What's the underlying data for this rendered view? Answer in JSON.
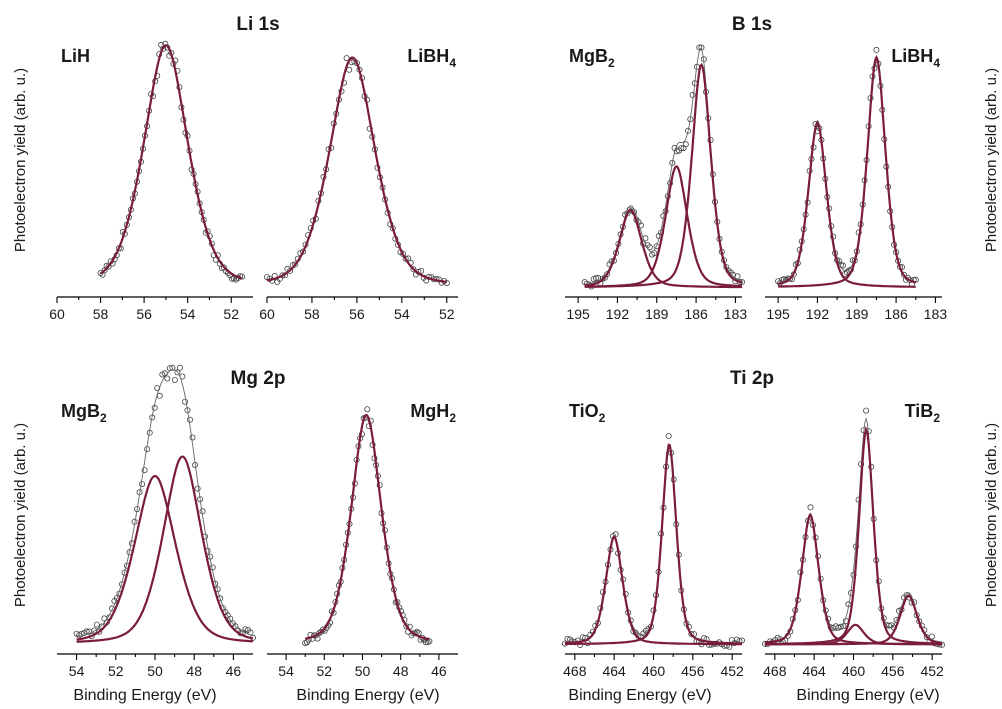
{
  "figure": {
    "ylabel": "Photoelectron yield",
    "ylabel_units": "(arb. u.)",
    "xlabel": "Binding Energy (eV)"
  },
  "groups": [
    {
      "title": "Li 1s"
    },
    {
      "title": "B 1s"
    },
    {
      "title": "Mg 2p"
    },
    {
      "title": "Ti 2p"
    }
  ],
  "colors": {
    "fit": "#7a1c3c",
    "data": "#444444",
    "envelope": "#666666"
  },
  "chart_data": [
    {
      "type": "line",
      "group": "Li 1s",
      "sample": "LiH",
      "sample_parts": [
        [
          "LiH",
          ""
        ]
      ],
      "x_range": [
        60,
        51
      ],
      "ticks": [
        60,
        58,
        56,
        54,
        52
      ],
      "data_extent": [
        58,
        51.5
      ],
      "peaks": [
        {
          "center": 55.0,
          "height": 1.0,
          "width": 1.55
        }
      ],
      "envelope": false
    },
    {
      "type": "line",
      "group": "Li 1s",
      "sample": "LiBH4",
      "sample_parts": [
        [
          "LiBH",
          "4"
        ]
      ],
      "x_range": [
        60,
        51.5
      ],
      "ticks": [
        60,
        58,
        56,
        54,
        52
      ],
      "data_extent": [
        60,
        52
      ],
      "peaks": [
        {
          "center": 56.2,
          "height": 0.95,
          "width": 1.55
        }
      ],
      "envelope": false
    },
    {
      "type": "line",
      "group": "B 1s",
      "sample": "MgB2",
      "sample_parts": [
        [
          "MgB",
          "2"
        ]
      ],
      "x_range": [
        196,
        182.5
      ],
      "ticks": [
        195,
        192,
        189,
        186,
        183
      ],
      "data_extent": [
        194.5,
        182.5
      ],
      "peaks": [
        {
          "center": 191.0,
          "height": 0.32,
          "width": 1.3
        },
        {
          "center": 187.5,
          "height": 0.5,
          "width": 1.25
        },
        {
          "center": 185.6,
          "height": 0.92,
          "width": 1.1
        }
      ],
      "envelope": true
    },
    {
      "type": "line",
      "group": "B 1s",
      "sample": "LiBH4",
      "sample_parts": [
        [
          "LiBH",
          "4"
        ]
      ],
      "x_range": [
        196,
        182.5
      ],
      "ticks": [
        195,
        192,
        189,
        186,
        183
      ],
      "data_extent": [
        195,
        184.5
      ],
      "peaks": [
        {
          "center": 192.0,
          "height": 0.68,
          "width": 1.05
        },
        {
          "center": 187.5,
          "height": 0.95,
          "width": 1.05
        }
      ],
      "envelope": true
    },
    {
      "type": "line",
      "group": "Mg 2p",
      "sample": "MgB2",
      "sample_parts": [
        [
          "MgB",
          "2"
        ]
      ],
      "x_range": [
        55,
        45
      ],
      "ticks": [
        54,
        52,
        50,
        48,
        46
      ],
      "data_extent": [
        54,
        45
      ],
      "peaks": [
        {
          "center": 50.0,
          "height": 0.69,
          "width": 1.6
        },
        {
          "center": 48.6,
          "height": 0.77,
          "width": 1.5
        }
      ],
      "envelope": true
    },
    {
      "type": "line",
      "group": "Mg 2p",
      "sample": "MgH2",
      "sample_parts": [
        [
          "MgH",
          "2"
        ]
      ],
      "x_range": [
        55,
        45
      ],
      "ticks": [
        54,
        52,
        50,
        48,
        46
      ],
      "data_extent": [
        53,
        46.5
      ],
      "peaks": [
        {
          "center": 49.8,
          "height": 0.94,
          "width": 1.2
        }
      ],
      "envelope": false
    },
    {
      "type": "line",
      "group": "Ti 2p",
      "sample": "TiO2",
      "sample_parts": [
        [
          "TiO",
          "2"
        ]
      ],
      "x_range": [
        469,
        451
      ],
      "ticks": [
        468,
        464,
        460,
        456,
        452
      ],
      "data_extent": [
        469,
        451
      ],
      "peaks": [
        {
          "center": 464.0,
          "height": 0.44,
          "width": 1.3
        },
        {
          "center": 458.4,
          "height": 0.82,
          "width": 1.1
        }
      ],
      "envelope": true
    },
    {
      "type": "line",
      "group": "Ti 2p",
      "sample": "TiB2",
      "sample_parts": [
        [
          "TiB",
          "2"
        ]
      ],
      "x_range": [
        469,
        451
      ],
      "ticks": [
        468,
        464,
        460,
        456,
        452
      ],
      "data_extent": [
        469,
        451
      ],
      "peaks": [
        {
          "center": 464.4,
          "height": 0.53,
          "width": 1.3
        },
        {
          "center": 459.8,
          "height": 0.08,
          "width": 1.3
        },
        {
          "center": 458.7,
          "height": 0.88,
          "width": 1.1
        },
        {
          "center": 454.4,
          "height": 0.2,
          "width": 1.3
        }
      ],
      "envelope": true
    }
  ]
}
